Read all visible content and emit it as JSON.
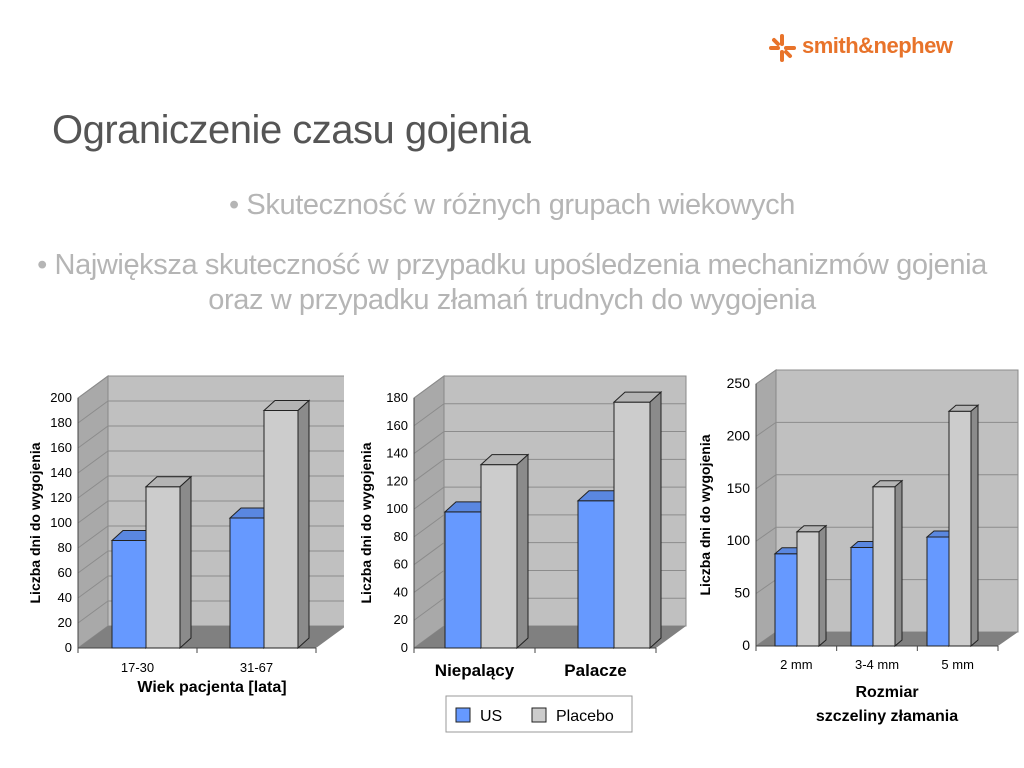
{
  "logo": {
    "text": "smith&nephew"
  },
  "title": "Ograniczenie czasu gojenia",
  "bullets": [
    "• Skuteczność w różnych grupach wiekowych",
    "• Największa skuteczność w przypadku upośledzenia mechanizmów gojenia oraz w przypadku złamań trudnych do wygojenia"
  ],
  "colors": {
    "us": "#6699ff",
    "placebo": "#cccccc",
    "floor": "#808080",
    "wall": "#c0c0c0",
    "accent": "#e8732a"
  },
  "chart_data": [
    {
      "type": "bar",
      "categories": [
        "17-30",
        "31-67"
      ],
      "series": [
        {
          "name": "US",
          "values": [
            86,
            104
          ]
        },
        {
          "name": "Placebo",
          "values": [
            129,
            190
          ]
        }
      ],
      "ylabel": "Liczba dni do wygojenia",
      "xlabel": "Wiek pacjenta [lata]",
      "ylim": [
        0,
        200
      ],
      "yticks": [
        "0",
        "20",
        "40",
        "60",
        "80",
        "100",
        "120",
        "140",
        "160",
        "180",
        "200"
      ],
      "grid": true
    },
    {
      "type": "bar",
      "categories": [
        "Niepalący",
        "Palacze"
      ],
      "series": [
        {
          "name": "US",
          "values": [
            98,
            106
          ]
        },
        {
          "name": "Placebo",
          "values": [
            132,
            177
          ]
        }
      ],
      "ylabel": "Liczba dni do wygojenia",
      "xlabel": "",
      "ylim": [
        0,
        180
      ],
      "yticks": [
        "0",
        "20",
        "40",
        "60",
        "80",
        "100",
        "120",
        "140",
        "160",
        "180"
      ],
      "grid": true,
      "legend": {
        "position": "bottom",
        "entries": [
          "US",
          "Placebo"
        ]
      }
    },
    {
      "type": "bar",
      "categories": [
        "2 mm",
        "3-4 mm",
        "5 mm"
      ],
      "series": [
        {
          "name": "US",
          "values": [
            88,
            94,
            104
          ]
        },
        {
          "name": "Placebo",
          "values": [
            109,
            152,
            224
          ]
        }
      ],
      "ylabel": "Liczba dni do wygojenia",
      "xlabel": "Rozmiar szczeliny złamania",
      "xlabel_lines": [
        "Rozmiar",
        "szczeliny złamania"
      ],
      "ylim": [
        0,
        250
      ],
      "yticks": [
        "0",
        "50",
        "100",
        "150",
        "200",
        "250"
      ],
      "grid": true
    }
  ]
}
